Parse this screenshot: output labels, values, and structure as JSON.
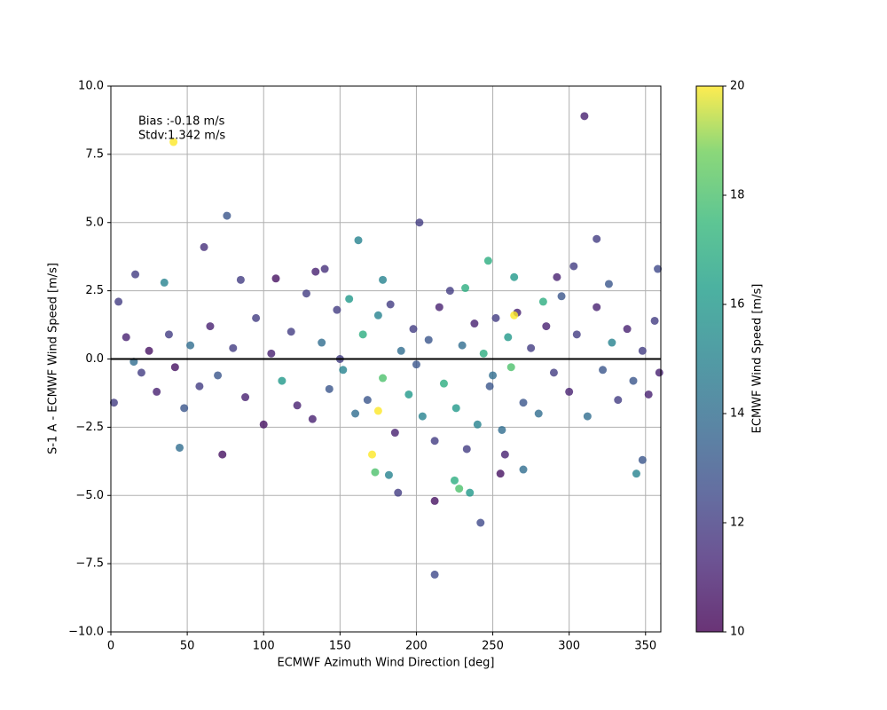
{
  "chart_data": {
    "type": "scatter",
    "xlabel": "ECMWF Azimuth Wind Direction [deg]",
    "ylabel": "S-1 A - ECMWF Wind Speed [m/s]",
    "colorbar_label": "ECMWF Wind Speed [m/s]",
    "annotations": [
      "Bias :-0.18 m/s",
      "Stdv:1.342 m/s"
    ],
    "colormap": "viridis",
    "alpha": 0.8,
    "grid": true,
    "hline": 0,
    "xlim": [
      0,
      360
    ],
    "xticks": [
      0,
      50,
      100,
      150,
      200,
      250,
      300,
      350
    ],
    "ylim": [
      -10,
      10
    ],
    "yticks": [
      {
        "value": -10,
        "label": "−10.0"
      },
      {
        "value": -7.5,
        "label": "−7.5"
      },
      {
        "value": -5,
        "label": "−5.0"
      },
      {
        "value": -2.5,
        "label": "−2.5"
      },
      {
        "value": 0,
        "label": "0.0"
      },
      2.5,
      {
        "value": 5,
        "label": "5.0"
      },
      7.5,
      {
        "value": 10,
        "label": "10.0"
      }
    ],
    "clim": [
      10,
      20
    ],
    "cticks": [
      10,
      12,
      14,
      16,
      18,
      20
    ],
    "x": [
      310,
      41,
      76,
      202,
      61,
      212,
      242,
      212,
      188,
      318,
      162,
      16,
      358,
      247,
      344,
      348,
      73,
      45,
      171,
      228,
      235,
      225,
      173,
      182,
      264,
      35,
      85,
      270,
      255,
      140,
      134,
      108,
      303,
      326,
      2,
      5,
      10,
      20,
      25,
      30,
      38,
      42,
      48,
      52,
      58,
      65,
      70,
      80,
      88,
      95,
      100,
      105,
      112,
      118,
      122,
      128,
      132,
      138,
      143,
      148,
      152,
      156,
      160,
      165,
      168,
      175,
      178,
      183,
      186,
      190,
      195,
      198,
      204,
      208,
      212,
      215,
      218,
      222,
      226,
      230,
      233,
      238,
      240,
      244,
      248,
      252,
      256,
      260,
      262,
      266,
      270,
      275,
      280,
      285,
      290,
      295,
      300,
      305,
      312,
      318,
      322,
      328,
      332,
      338,
      342,
      348,
      352,
      356,
      359,
      283,
      232,
      178,
      258,
      292,
      15,
      200,
      150,
      250,
      175,
      264
    ],
    "y": [
      8.9,
      7.95,
      5.25,
      5.0,
      4.1,
      -7.9,
      -6.0,
      -5.2,
      -4.9,
      4.4,
      4.35,
      3.1,
      3.3,
      3.6,
      -4.2,
      -3.7,
      -3.5,
      -3.25,
      -3.5,
      -4.75,
      -4.9,
      -4.45,
      -4.15,
      -4.25,
      3.0,
      2.8,
      2.9,
      -4.05,
      -4.2,
      3.3,
      3.2,
      2.95,
      3.4,
      2.75,
      -1.6,
      2.1,
      0.8,
      -0.5,
      0.3,
      -1.2,
      0.9,
      -0.3,
      -1.8,
      0.5,
      -1.0,
      1.2,
      -0.6,
      0.4,
      -1.4,
      1.5,
      -2.4,
      0.2,
      -0.8,
      1.0,
      -1.7,
      2.4,
      -2.2,
      0.6,
      -1.1,
      1.8,
      -0.4,
      2.2,
      -2.0,
      0.9,
      -1.5,
      1.6,
      -0.7,
      2.0,
      -2.7,
      0.3,
      -1.3,
      1.1,
      -2.1,
      0.7,
      -3.0,
      1.9,
      -0.9,
      2.5,
      -1.8,
      0.5,
      -3.3,
      1.3,
      -2.4,
      0.2,
      -1.0,
      1.5,
      -2.6,
      0.8,
      -0.3,
      1.7,
      -1.6,
      0.4,
      -2.0,
      1.2,
      -0.5,
      2.3,
      -1.2,
      0.9,
      -2.1,
      1.9,
      -0.4,
      0.6,
      -1.5,
      1.1,
      -0.8,
      0.3,
      -1.3,
      1.4,
      -0.5,
      2.1,
      2.6,
      2.9,
      -3.5,
      3.0,
      -0.1,
      -0.2,
      0.0,
      -0.6,
      -1.9,
      1.6
    ],
    "c": [
      11,
      20,
      13,
      12,
      11.5,
      12.5,
      12.5,
      10.5,
      12,
      12,
      15,
      12,
      12.5,
      17,
      15,
      13,
      10.5,
      14,
      20,
      18,
      16,
      17,
      18,
      15,
      16,
      15,
      12,
      14,
      10.5,
      11.5,
      11,
      10.5,
      12,
      13,
      12,
      12,
      11,
      12,
      10.5,
      11,
      12,
      10.5,
      13,
      14,
      12,
      11,
      13,
      12,
      11,
      12,
      10.5,
      11,
      16,
      12,
      11,
      12,
      11,
      14,
      13,
      12,
      15,
      16,
      14,
      17,
      13,
      15,
      18,
      12,
      11,
      14,
      16,
      12,
      15,
      13,
      12,
      11,
      17,
      12,
      16,
      14,
      12,
      11,
      15,
      17,
      13,
      12,
      14,
      16,
      18,
      11,
      13,
      12,
      14,
      11,
      12,
      13,
      11,
      12,
      14,
      11,
      13,
      15,
      12,
      11,
      13,
      12,
      11,
      12,
      11,
      17,
      17,
      15,
      11,
      11,
      14,
      13,
      12,
      14,
      20,
      20
    ]
  }
}
